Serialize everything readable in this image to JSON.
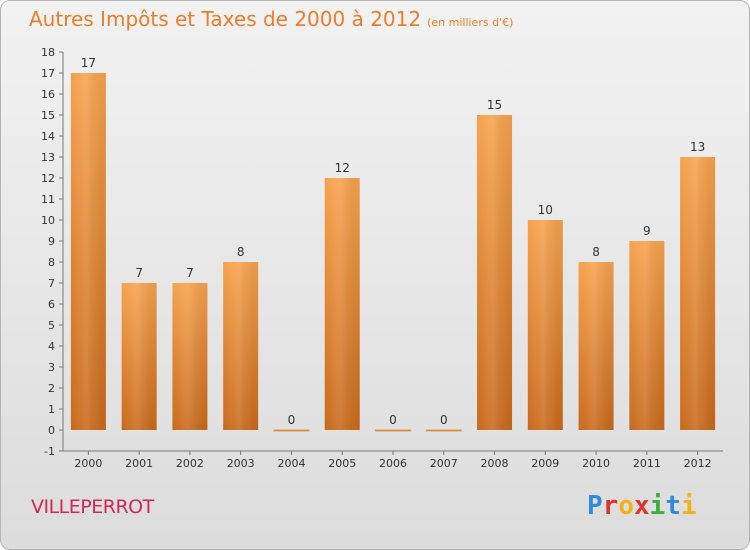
{
  "title": "Autres Impôts et Taxes de 2000 à 2012",
  "unit": "(en milliers d'€)",
  "commune": "VILLEPERROT",
  "brand": [
    "P",
    "r",
    "o",
    "x",
    "i",
    "t",
    "i"
  ],
  "brand_colors": [
    "#2f8ad8",
    "#e2332d",
    "#f0b318",
    "#e2332d",
    "#3fae3f",
    "#2f8ad8",
    "#f0b318"
  ],
  "colors": {
    "bar_top": "#f6a24d",
    "bar_bottom": "#c96a1c",
    "title": "#ee7d2d",
    "commune": "#d3265a"
  },
  "chart_data": {
    "type": "bar",
    "title": "Autres Impôts et Taxes de 2000 à 2012",
    "categories": [
      "2000",
      "2001",
      "2002",
      "2003",
      "2004",
      "2005",
      "2006",
      "2007",
      "2008",
      "2009",
      "2010",
      "2011",
      "2012"
    ],
    "values": [
      17,
      7,
      7,
      8,
      0,
      12,
      0,
      0,
      15,
      10,
      8,
      9,
      13
    ],
    "ylim": [
      -1,
      18
    ],
    "yticks": [
      -1,
      0,
      1,
      2,
      3,
      4,
      5,
      6,
      7,
      8,
      9,
      10,
      11,
      12,
      13,
      14,
      15,
      16,
      17,
      18
    ],
    "grid": false,
    "data_labels": true
  }
}
